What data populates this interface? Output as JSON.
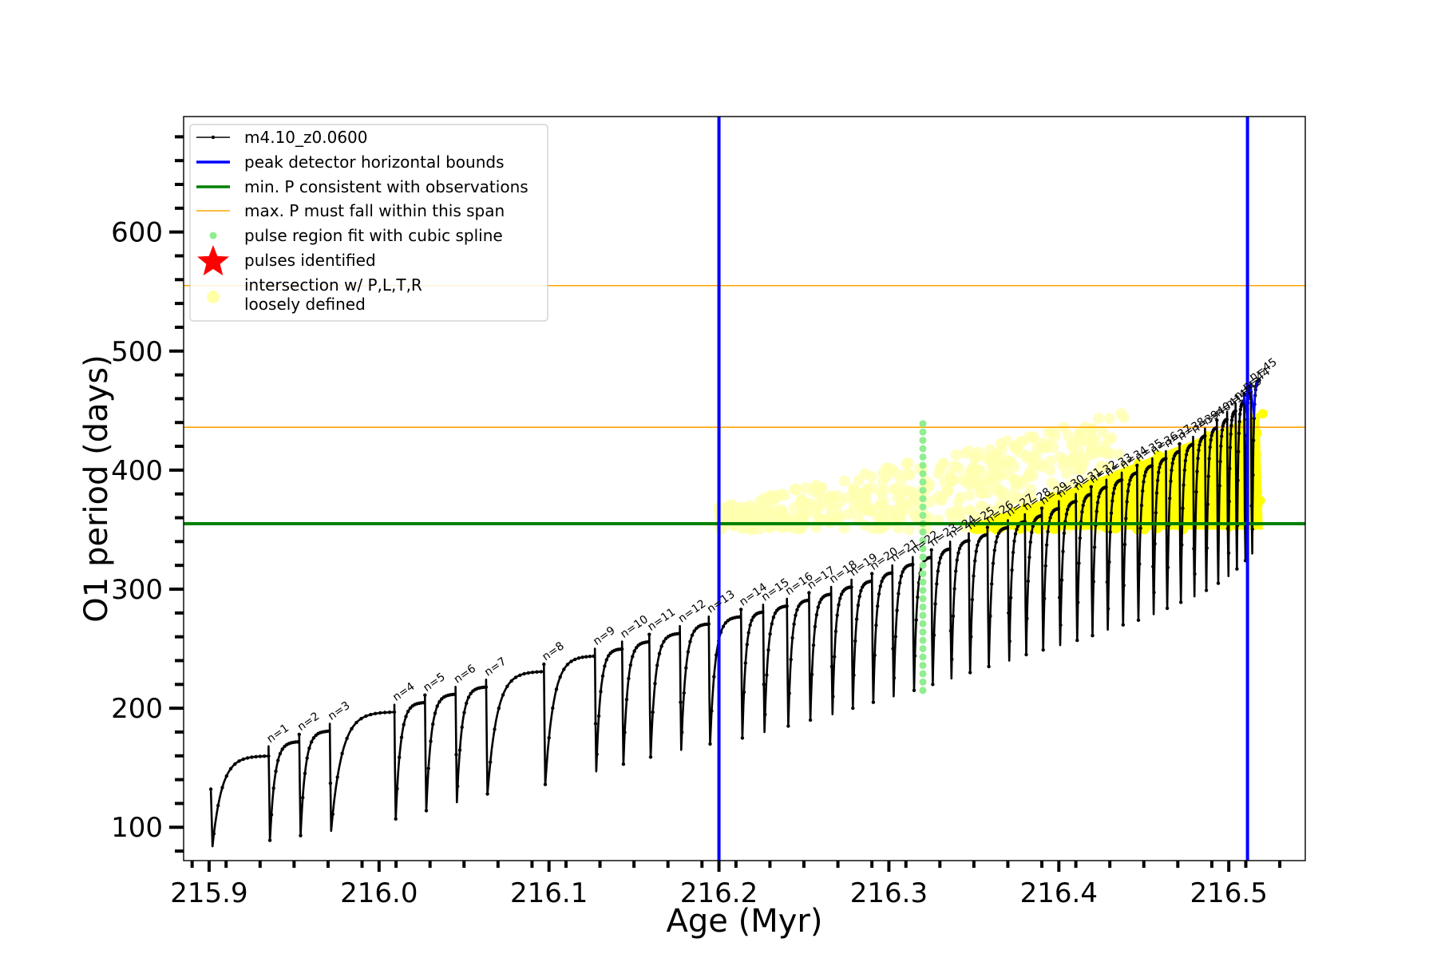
{
  "chart_data": {
    "type": "line",
    "xlabel": "Age (Myr)",
    "ylabel": "O1 period (days)",
    "xlim": [
      215.885,
      216.545
    ],
    "ylim": [
      72,
      697
    ],
    "x_ticks": [
      215.9,
      216.0,
      216.1,
      216.2,
      216.3,
      216.4,
      216.5
    ],
    "x_tick_labels": [
      "215.9",
      "216.0",
      "216.1",
      "216.2",
      "216.3",
      "216.4",
      "216.5"
    ],
    "y_ticks": [
      100,
      200,
      300,
      400,
      500,
      600
    ],
    "y_tick_labels": [
      "100",
      "200",
      "300",
      "400",
      "500",
      "600"
    ],
    "grid": false,
    "legend_position": "top-left",
    "legend": [
      {
        "key": "track",
        "label": "m4.10_z0.0600",
        "color": "#000000",
        "marker": "line-dot"
      },
      {
        "key": "bounds",
        "label": "peak detector horizontal bounds",
        "color": "#0000ff",
        "marker": "thick-line"
      },
      {
        "key": "minp",
        "label": "min. P consistent with observations",
        "color": "#008000",
        "marker": "thick-line"
      },
      {
        "key": "maxp",
        "label": "max. P must fall within this span",
        "color": "#ffa500",
        "marker": "thin-line"
      },
      {
        "key": "spline",
        "label": "pulse region fit with cubic spline",
        "color": "#90ee90",
        "marker": "dot"
      },
      {
        "key": "pulses",
        "label": "pulses identified",
        "color": "#ff0000",
        "marker": "star"
      },
      {
        "key": "intersect",
        "label": "intersection w/ P,L,T,R",
        "label2": "loosely defined",
        "color": "#ffffa8",
        "marker": "big-dot"
      }
    ],
    "vertical_lines": [
      216.2,
      216.511
    ],
    "vertical_line_color": "#0000ff",
    "min_period": 355,
    "min_period_color": "#008000",
    "max_period_span": [
      436,
      555
    ],
    "max_period_color": "#ffa500",
    "track_color": "#000000",
    "spline_color": "#90ee90",
    "intersection_color": "#ffff00",
    "intersection_faint_color": "#ffffb0",
    "spline_segment": {
      "x": 216.32,
      "y_range": [
        215,
        440
      ]
    },
    "pulses": [
      {
        "n": 1,
        "x": 215.935,
        "base": 89,
        "peak": 168
      },
      {
        "n": 2,
        "x": 215.953,
        "base": 93,
        "peak": 178
      },
      {
        "n": 3,
        "x": 215.971,
        "base": 97,
        "peak": 187
      },
      {
        "n": 4,
        "x": 216.009,
        "base": 107,
        "peak": 203
      },
      {
        "n": 5,
        "x": 216.027,
        "base": 114,
        "peak": 211
      },
      {
        "n": 6,
        "x": 216.045,
        "base": 121,
        "peak": 218
      },
      {
        "n": 7,
        "x": 216.063,
        "base": 128,
        "peak": 224
      },
      {
        "n": 8,
        "x": 216.097,
        "base": 136,
        "peak": 237
      },
      {
        "n": 9,
        "x": 216.127,
        "base": 147,
        "peak": 250
      },
      {
        "n": 10,
        "x": 216.143,
        "base": 153,
        "peak": 256
      },
      {
        "n": 11,
        "x": 216.159,
        "base": 159,
        "peak": 262
      },
      {
        "n": 12,
        "x": 216.177,
        "base": 165,
        "peak": 269
      },
      {
        "n": 13,
        "x": 216.194,
        "base": 170,
        "peak": 277
      },
      {
        "n": 14,
        "x": 216.213,
        "base": 175,
        "peak": 283
      },
      {
        "n": 15,
        "x": 216.226,
        "base": 180,
        "peak": 287
      },
      {
        "n": 16,
        "x": 216.24,
        "base": 185,
        "peak": 292
      },
      {
        "n": 17,
        "x": 216.253,
        "base": 190,
        "peak": 297
      },
      {
        "n": 18,
        "x": 216.266,
        "base": 195,
        "peak": 302
      },
      {
        "n": 19,
        "x": 216.278,
        "base": 200,
        "peak": 308
      },
      {
        "n": 20,
        "x": 216.29,
        "base": 205,
        "peak": 313
      },
      {
        "n": 21,
        "x": 216.302,
        "base": 210,
        "peak": 320
      },
      {
        "n": 22,
        "x": 216.314,
        "base": 215,
        "peak": 327
      },
      {
        "n": 23,
        "x": 216.325,
        "base": 220,
        "peak": 333
      },
      {
        "n": 24,
        "x": 216.336,
        "base": 225,
        "peak": 340
      },
      {
        "n": 25,
        "x": 216.347,
        "base": 230,
        "peak": 347
      },
      {
        "n": 26,
        "x": 216.358,
        "base": 235,
        "peak": 352
      },
      {
        "n": 27,
        "x": 216.37,
        "base": 240,
        "peak": 358
      },
      {
        "n": 28,
        "x": 216.38,
        "base": 245,
        "peak": 363
      },
      {
        "n": 29,
        "x": 216.39,
        "base": 249,
        "peak": 368
      },
      {
        "n": 30,
        "x": 216.4,
        "base": 253,
        "peak": 374
      },
      {
        "n": 31,
        "x": 216.41,
        "base": 257,
        "peak": 380
      },
      {
        "n": 32,
        "x": 216.419,
        "base": 261,
        "peak": 386
      },
      {
        "n": 33,
        "x": 216.428,
        "base": 266,
        "peak": 392
      },
      {
        "n": 34,
        "x": 216.437,
        "base": 270,
        "peak": 398
      },
      {
        "n": 35,
        "x": 216.446,
        "base": 274,
        "peak": 404
      },
      {
        "n": 36,
        "x": 216.455,
        "base": 279,
        "peak": 410
      },
      {
        "n": 37,
        "x": 216.463,
        "base": 284,
        "peak": 416
      },
      {
        "n": 38,
        "x": 216.471,
        "base": 289,
        "peak": 422
      },
      {
        "n": 39,
        "x": 216.479,
        "base": 294,
        "peak": 428
      },
      {
        "n": 40,
        "x": 216.486,
        "base": 299,
        "peak": 435
      },
      {
        "n": 41,
        "x": 216.493,
        "base": 305,
        "peak": 442
      },
      {
        "n": 42,
        "x": 216.499,
        "base": 311,
        "peak": 449
      },
      {
        "n": 43,
        "x": 216.504,
        "base": 317,
        "peak": 456
      },
      {
        "n": 44,
        "x": 216.509,
        "base": 324,
        "peak": 464
      },
      {
        "n": 45,
        "x": 216.513,
        "base": 330,
        "peak": 472
      }
    ],
    "track_start": {
      "x": 215.901,
      "y": 132
    },
    "track_end": {
      "x": 216.518,
      "y": 476
    },
    "yellow_region": {
      "x_start": 216.2,
      "x_end": 216.52,
      "y_low": 350,
      "solid_from_x": 216.35
    }
  }
}
